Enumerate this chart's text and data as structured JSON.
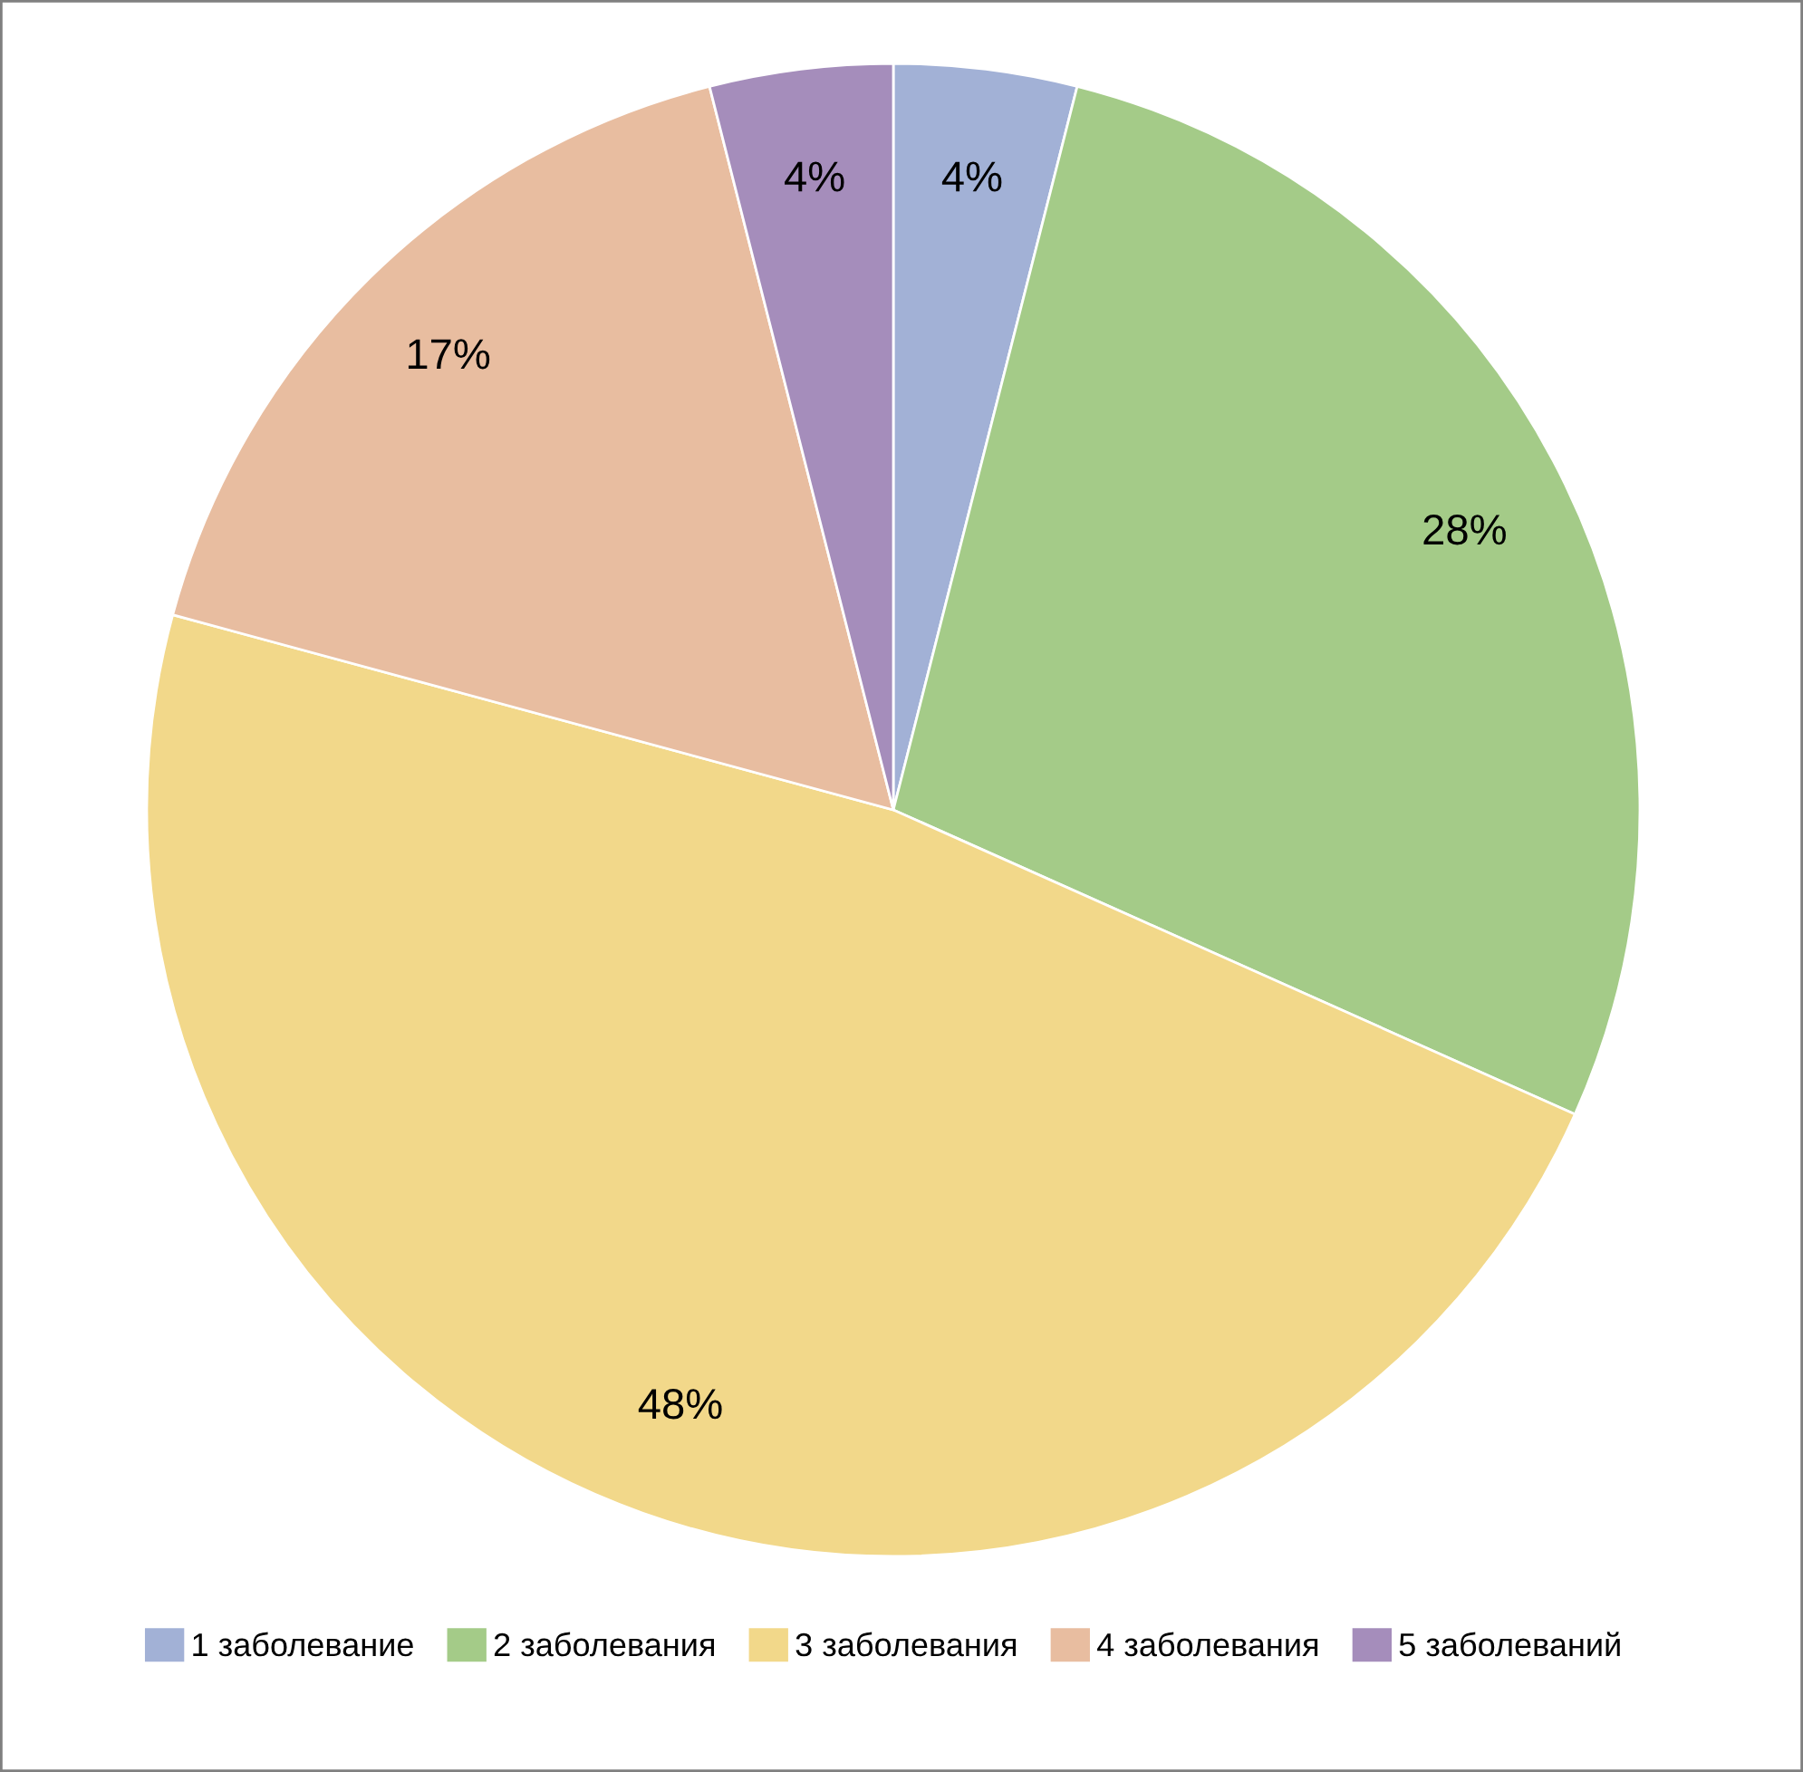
{
  "chart_data": {
    "type": "pie",
    "categories": [
      "1 заболевание",
      "2 заболевания",
      "3 заболевания",
      "4 заболевания",
      "5 заболеваний"
    ],
    "values": [
      4,
      28,
      48,
      17,
      4
    ],
    "value_labels": [
      "4%",
      "28%",
      "48%",
      "17%",
      "4%"
    ],
    "colors": [
      "#a2b1d6",
      "#a4cb88",
      "#f2d88a",
      "#e8bda0",
      "#a58dbb"
    ],
    "legend": "bottom"
  }
}
